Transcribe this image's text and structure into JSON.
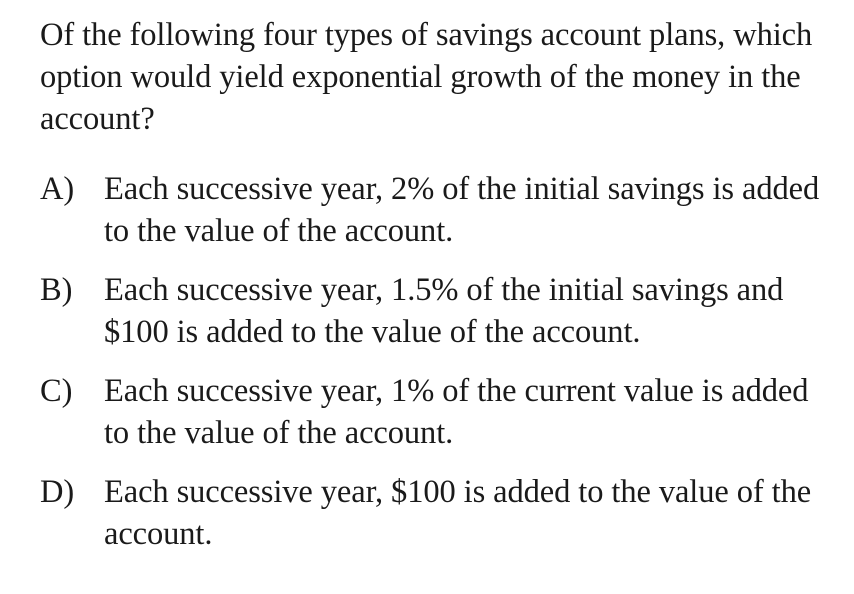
{
  "question": {
    "text": "Of the following four types of savings account plans, which option would yield exponential growth of the money in the account?"
  },
  "choices": [
    {
      "letter": "A)",
      "text": "Each successive year, 2% of the initial savings is added to the value of the account."
    },
    {
      "letter": "B)",
      "text": "Each successive year, 1.5% of the initial savings and $100 is added to the value of the account."
    },
    {
      "letter": "C)",
      "text": "Each successive year, 1% of the current value is added to the value of the account."
    },
    {
      "letter": "D)",
      "text": "Each successive year, $100 is added to the value of the account."
    }
  ]
}
